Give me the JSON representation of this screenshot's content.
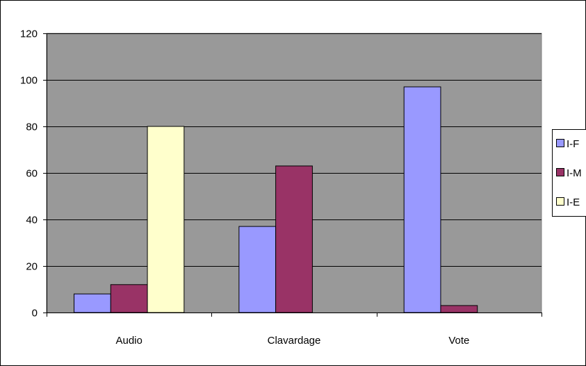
{
  "chart_data": {
    "type": "bar",
    "title": "",
    "xlabel": "",
    "ylabel": "",
    "categories": [
      "Audio",
      "Clavardage",
      "Vote"
    ],
    "series": [
      {
        "name": "I-F",
        "values": [
          8,
          37,
          97
        ],
        "color": "#9999ff"
      },
      {
        "name": "I-M",
        "values": [
          12,
          63,
          3
        ],
        "color": "#993366"
      },
      {
        "name": "I-E",
        "values": [
          80,
          0,
          0
        ],
        "color": "#ffffcc"
      }
    ],
    "ylim": [
      0,
      120
    ],
    "yticks": [
      "0",
      "20",
      "40",
      "60",
      "80",
      "100",
      "120"
    ],
    "grid": true,
    "legend_position": "right",
    "plot_background": "#999999",
    "gridline_color": "#000000"
  }
}
